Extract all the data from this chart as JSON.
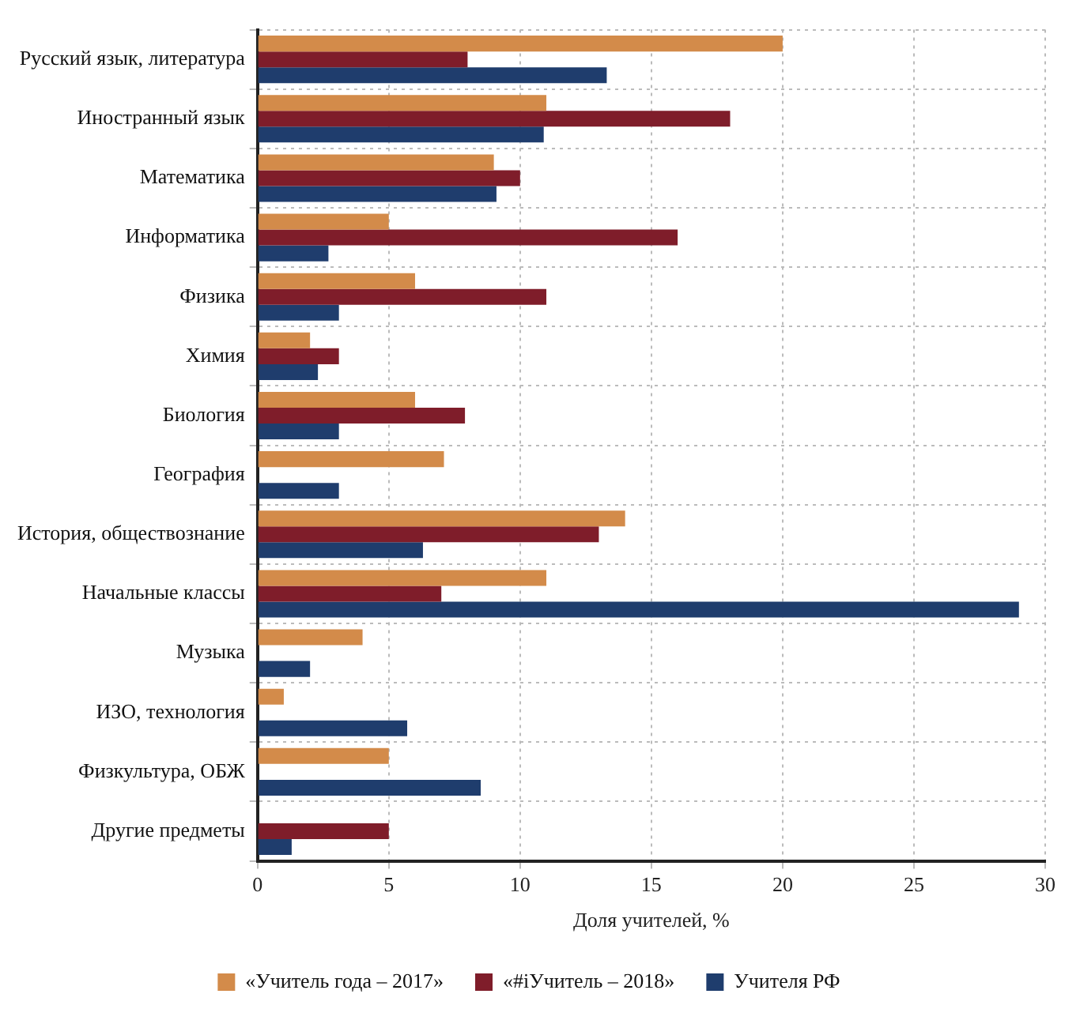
{
  "chart_data": {
    "type": "bar",
    "orientation": "horizontal",
    "xlabel": "Доля учителей, %",
    "categories": [
      "Русский язык, литература",
      "Иностранный язык",
      "Математика",
      "Информатика",
      "Физика",
      "Химия",
      "Биология",
      "География",
      "История, обществознание",
      "Начальные классы",
      "Музыка",
      "ИЗО, технология",
      "Физкультура, ОБЖ",
      "Другие предметы"
    ],
    "series": [
      {
        "name": "«Учитель года – 2017»",
        "color": "#d38b4a",
        "values": [
          20,
          11,
          9,
          5,
          6,
          2,
          6,
          7.1,
          14,
          11,
          4,
          1,
          5,
          null
        ]
      },
      {
        "name": "«#iУчитель – 2018»",
        "color": "#7f1d2a",
        "values": [
          8,
          18,
          10,
          16,
          11,
          3.1,
          7.9,
          null,
          13,
          7,
          null,
          null,
          null,
          5
        ]
      },
      {
        "name": "Учителя РФ",
        "color": "#1f3d6d",
        "values": [
          13.3,
          10.9,
          9.1,
          2.7,
          3.1,
          2.3,
          3.1,
          3.1,
          6.3,
          29,
          2,
          5.7,
          8.5,
          1.3
        ]
      }
    ],
    "xlim": [
      0,
      30
    ],
    "xticks": [
      0,
      5,
      10,
      15,
      20,
      25,
      30
    ],
    "grid": true,
    "legend": "bottom"
  }
}
